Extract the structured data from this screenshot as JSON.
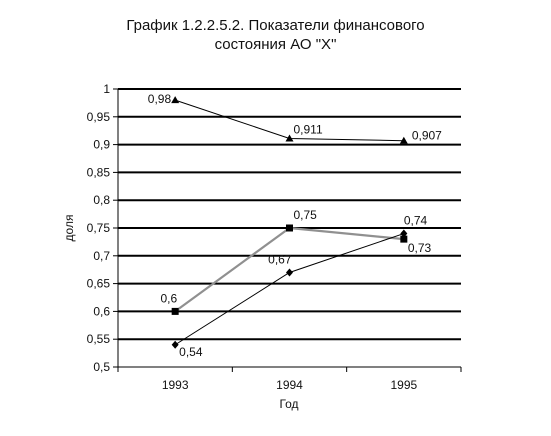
{
  "chart_data": {
    "type": "line",
    "title_line1": "График 1.2.2.5.2.  Показатели финансового",
    "title_line2": "состояния АО \"Х\"",
    "xlabel": "Год",
    "ylabel": "доля",
    "categories": [
      "1993",
      "1994",
      "1995"
    ],
    "ylim": [
      0.5,
      1
    ],
    "yticks": [
      "0,5",
      "0,55",
      "0,6",
      "0,65",
      "0,7",
      "0,75",
      "0,8",
      "0,85",
      "0,9",
      "0,95",
      "1"
    ],
    "grid": true,
    "series": [
      {
        "marker": "triangle",
        "color": "#000000",
        "values": [
          0.98,
          0.911,
          0.907
        ],
        "labels": [
          "0,98",
          "0,911",
          "0,907"
        ]
      },
      {
        "marker": "square",
        "color": "#909090",
        "values": [
          0.6,
          0.75,
          0.73
        ],
        "labels": [
          "0,6",
          "0,75",
          "0,73"
        ]
      },
      {
        "marker": "diamond",
        "color": "#000000",
        "values": [
          0.54,
          0.67,
          0.74
        ],
        "labels": [
          "0,54",
          "0,67",
          "0,74"
        ]
      }
    ]
  }
}
